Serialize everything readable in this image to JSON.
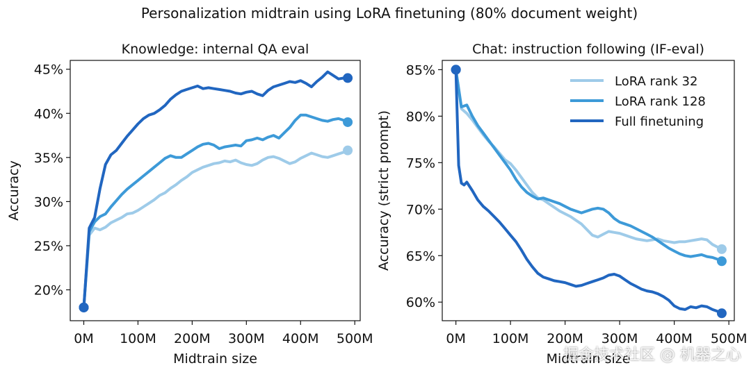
{
  "figure_title": "Personalization midtrain using LoRA finetuning (80% document weight)",
  "watermark": "掘金技术社区 @ 机器之心",
  "chart_data": [
    {
      "type": "line",
      "title": "Knowledge: internal QA eval",
      "xlabel": "Midtrain size",
      "ylabel": "Accuracy",
      "xlim": [
        -25,
        510
      ],
      "ylim": [
        16.5,
        46
      ],
      "xticks": [
        0,
        100,
        200,
        300,
        400,
        500
      ],
      "xtick_labels": [
        "0M",
        "100M",
        "200M",
        "300M",
        "400M",
        "500M"
      ],
      "yticks": [
        20,
        25,
        30,
        35,
        40,
        45
      ],
      "ytick_labels": [
        "20%",
        "25%",
        "30%",
        "35%",
        "40%",
        "45%"
      ],
      "legend": false,
      "series": [
        {
          "name": "LoRA rank 32",
          "color": "#9ecbe9",
          "end_marker": true,
          "x": [
            0,
            10,
            20,
            30,
            40,
            50,
            60,
            70,
            80,
            90,
            100,
            110,
            120,
            130,
            140,
            150,
            160,
            170,
            180,
            190,
            200,
            210,
            220,
            230,
            240,
            250,
            260,
            270,
            280,
            290,
            300,
            310,
            320,
            330,
            340,
            350,
            360,
            370,
            380,
            390,
            400,
            410,
            420,
            430,
            440,
            450,
            460,
            470,
            480,
            487
          ],
          "y": [
            18,
            26.2,
            27.0,
            26.8,
            27.1,
            27.6,
            27.9,
            28.2,
            28.6,
            28.7,
            29.0,
            29.4,
            29.8,
            30.2,
            30.7,
            31.0,
            31.5,
            31.9,
            32.4,
            32.8,
            33.3,
            33.6,
            33.9,
            34.1,
            34.3,
            34.4,
            34.6,
            34.5,
            34.7,
            34.4,
            34.2,
            34.1,
            34.3,
            34.7,
            35.0,
            35.1,
            34.9,
            34.6,
            34.3,
            34.5,
            34.9,
            35.2,
            35.5,
            35.3,
            35.1,
            35.0,
            35.2,
            35.4,
            35.6,
            35.8
          ]
        },
        {
          "name": "LoRA rank 128",
          "color": "#3d9ad8",
          "end_marker": true,
          "x": [
            0,
            10,
            20,
            30,
            40,
            50,
            60,
            70,
            80,
            90,
            100,
            110,
            120,
            130,
            140,
            150,
            160,
            170,
            180,
            190,
            200,
            210,
            220,
            230,
            240,
            250,
            260,
            270,
            280,
            290,
            300,
            310,
            320,
            330,
            340,
            350,
            360,
            370,
            380,
            390,
            400,
            410,
            420,
            430,
            440,
            450,
            460,
            470,
            480,
            487
          ],
          "y": [
            18,
            26.6,
            27.7,
            28.3,
            28.6,
            29.4,
            30.1,
            30.8,
            31.4,
            31.9,
            32.4,
            32.9,
            33.4,
            33.9,
            34.4,
            34.9,
            35.2,
            35.0,
            35.0,
            35.4,
            35.8,
            36.2,
            36.5,
            36.6,
            36.4,
            36.0,
            36.2,
            36.3,
            36.4,
            36.3,
            36.9,
            37.0,
            37.2,
            37.0,
            37.3,
            37.5,
            37.2,
            37.8,
            38.4,
            39.2,
            39.8,
            39.8,
            39.6,
            39.4,
            39.2,
            39.1,
            39.3,
            39.4,
            39.2,
            39.0
          ]
        },
        {
          "name": "Full finetuning",
          "color": "#2166c0",
          "end_marker": true,
          "x": [
            0,
            10,
            20,
            30,
            40,
            50,
            60,
            70,
            80,
            90,
            100,
            110,
            120,
            130,
            140,
            150,
            160,
            170,
            180,
            190,
            200,
            210,
            220,
            230,
            240,
            250,
            260,
            270,
            280,
            290,
            300,
            310,
            320,
            330,
            340,
            350,
            360,
            370,
            380,
            390,
            400,
            410,
            420,
            430,
            440,
            450,
            460,
            470,
            480,
            487
          ],
          "y": [
            18,
            27.0,
            28.2,
            31.5,
            34.2,
            35.3,
            35.8,
            36.6,
            37.4,
            38.1,
            38.8,
            39.4,
            39.8,
            40.0,
            40.4,
            40.9,
            41.6,
            42.1,
            42.5,
            42.7,
            42.9,
            43.1,
            42.8,
            42.9,
            42.8,
            42.7,
            42.6,
            42.5,
            42.3,
            42.2,
            42.4,
            42.5,
            42.2,
            42.0,
            42.6,
            43.0,
            43.2,
            43.4,
            43.6,
            43.5,
            43.7,
            43.4,
            43.0,
            43.6,
            44.1,
            44.7,
            44.3,
            43.9,
            44.0,
            44.0
          ]
        }
      ]
    },
    {
      "type": "line",
      "title": "Chat: instruction following (IF-eval)",
      "xlabel": "Midtrain size",
      "ylabel": "Accuracy (strict prompt)",
      "xlim": [
        -25,
        510
      ],
      "ylim": [
        58,
        86
      ],
      "xticks": [
        0,
        100,
        200,
        300,
        400,
        500
      ],
      "xtick_labels": [
        "0M",
        "100M",
        "200M",
        "300M",
        "400M",
        "500M"
      ],
      "yticks": [
        60,
        65,
        70,
        75,
        80,
        85
      ],
      "ytick_labels": [
        "60%",
        "65%",
        "70%",
        "75%",
        "80%",
        "85%"
      ],
      "legend": true,
      "legend_loc": "top-right",
      "series": [
        {
          "name": "LoRA rank 32",
          "color": "#9ecbe9",
          "end_marker": true,
          "x": [
            0,
            10,
            20,
            30,
            40,
            50,
            60,
            70,
            80,
            90,
            100,
            110,
            120,
            130,
            140,
            150,
            160,
            170,
            180,
            190,
            200,
            210,
            220,
            230,
            240,
            250,
            260,
            270,
            280,
            290,
            300,
            310,
            320,
            330,
            340,
            350,
            360,
            370,
            380,
            390,
            400,
            410,
            420,
            430,
            440,
            450,
            460,
            470,
            480,
            487
          ],
          "y": [
            85,
            80.8,
            80.3,
            79.6,
            78.8,
            78.0,
            77.3,
            76.7,
            76.0,
            75.3,
            74.9,
            74.2,
            73.4,
            72.6,
            71.8,
            71.2,
            71.0,
            70.6,
            70.2,
            69.8,
            69.5,
            69.2,
            68.8,
            68.4,
            67.8,
            67.2,
            67.0,
            67.3,
            67.6,
            67.5,
            67.4,
            67.2,
            67.0,
            66.8,
            66.7,
            66.6,
            66.7,
            66.8,
            66.6,
            66.5,
            66.4,
            66.5,
            66.5,
            66.6,
            66.7,
            66.8,
            66.7,
            66.2,
            65.9,
            65.7
          ]
        },
        {
          "name": "LoRA rank 128",
          "color": "#3d9ad8",
          "end_marker": true,
          "x": [
            0,
            10,
            20,
            30,
            40,
            50,
            60,
            70,
            80,
            90,
            100,
            110,
            120,
            130,
            140,
            150,
            160,
            170,
            180,
            190,
            200,
            210,
            220,
            230,
            240,
            250,
            260,
            270,
            280,
            290,
            300,
            310,
            320,
            330,
            340,
            350,
            360,
            370,
            380,
            390,
            400,
            410,
            420,
            430,
            440,
            450,
            460,
            470,
            480,
            487
          ],
          "y": [
            85,
            81.0,
            81.2,
            80.0,
            79.0,
            78.2,
            77.4,
            76.6,
            75.8,
            75.0,
            74.2,
            73.2,
            72.4,
            71.8,
            71.4,
            71.1,
            71.2,
            71.0,
            70.8,
            70.6,
            70.3,
            70.0,
            69.8,
            69.6,
            69.8,
            70.0,
            70.1,
            70.0,
            69.6,
            69.0,
            68.6,
            68.4,
            68.2,
            67.9,
            67.6,
            67.3,
            67.0,
            66.6,
            66.2,
            65.8,
            65.5,
            65.2,
            65.0,
            64.9,
            65.0,
            65.1,
            64.9,
            64.8,
            64.6,
            64.4
          ]
        },
        {
          "name": "Full finetuning",
          "color": "#2166c0",
          "end_marker": true,
          "x": [
            0,
            5,
            10,
            15,
            20,
            30,
            40,
            50,
            60,
            70,
            80,
            90,
            100,
            110,
            120,
            130,
            140,
            150,
            160,
            170,
            180,
            190,
            200,
            210,
            220,
            230,
            240,
            250,
            260,
            270,
            280,
            290,
            300,
            310,
            320,
            330,
            340,
            350,
            360,
            370,
            380,
            390,
            400,
            410,
            420,
            430,
            440,
            450,
            460,
            470,
            480,
            487
          ],
          "y": [
            85,
            74.7,
            72.8,
            72.6,
            72.9,
            72.0,
            71.0,
            70.3,
            69.8,
            69.2,
            68.6,
            67.9,
            67.2,
            66.5,
            65.6,
            64.6,
            63.8,
            63.1,
            62.7,
            62.5,
            62.3,
            62.2,
            62.1,
            61.9,
            61.7,
            61.8,
            62.0,
            62.2,
            62.4,
            62.6,
            62.9,
            63.0,
            62.8,
            62.4,
            62.0,
            61.7,
            61.4,
            61.2,
            61.1,
            60.9,
            60.6,
            60.2,
            59.6,
            59.3,
            59.2,
            59.5,
            59.4,
            59.6,
            59.5,
            59.2,
            59.0,
            58.8
          ]
        }
      ]
    }
  ]
}
